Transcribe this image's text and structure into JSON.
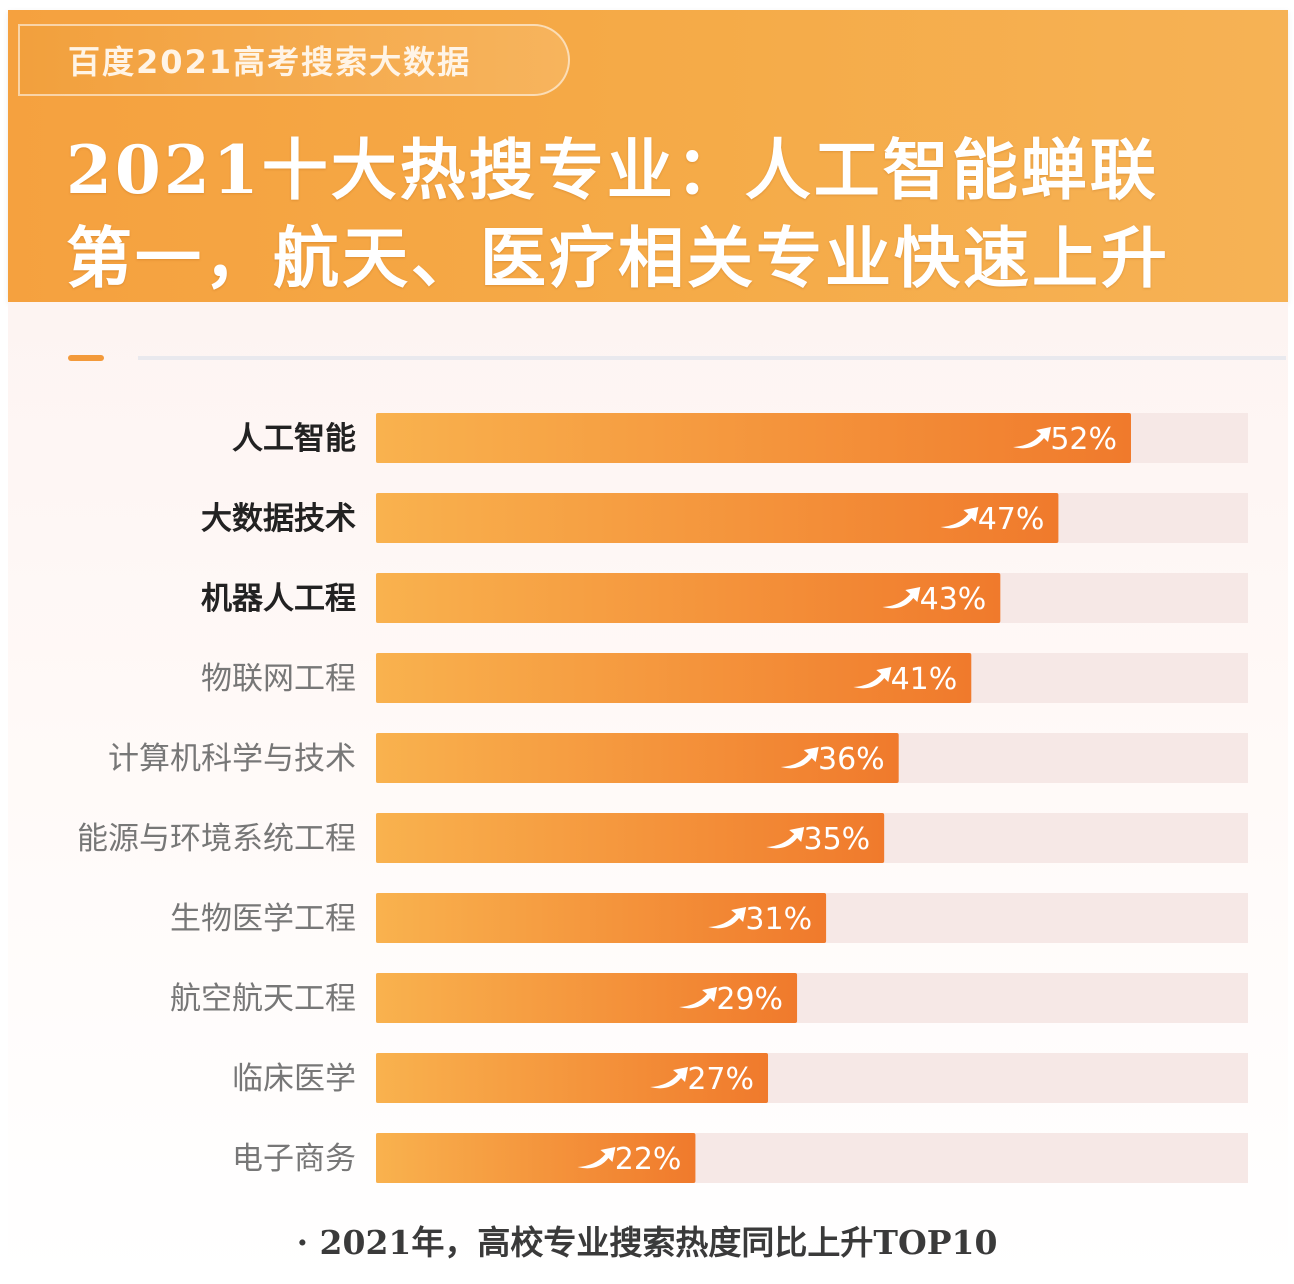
{
  "header": {
    "badge": "百度2021高考搜索大数据",
    "headline_line1": "2021十大热搜专业：人工智能蝉联",
    "headline_line2": "第一，航天、医疗相关专业快速上升"
  },
  "colors": {
    "header_orange": "#f5a13f",
    "bar_start": "#f9b24e",
    "bar_end": "#f07a2c",
    "track": "#f6e8e6"
  },
  "chart_data": {
    "type": "bar",
    "orientation": "horizontal",
    "categories": [
      "人工智能",
      "大数据技术",
      "机器人工程",
      "物联网工程",
      "计算机科学与技术",
      "能源与环境系统工程",
      "生物医学工程",
      "航空航天工程",
      "临床医学",
      "电子商务"
    ],
    "values": [
      52,
      47,
      43,
      41,
      36,
      35,
      31,
      29,
      27,
      22
    ],
    "value_labels": [
      "52%",
      "47%",
      "43%",
      "41%",
      "36%",
      "35%",
      "31%",
      "29%",
      "27%",
      "22%"
    ],
    "bold_categories": 3,
    "xlim": [
      0,
      60
    ],
    "grid": false,
    "legend": "none",
    "annotation_icon": "trend-up-arrow-icon",
    "footnote": "· 2021年，高校专业搜索热度同比上升TOP10"
  }
}
